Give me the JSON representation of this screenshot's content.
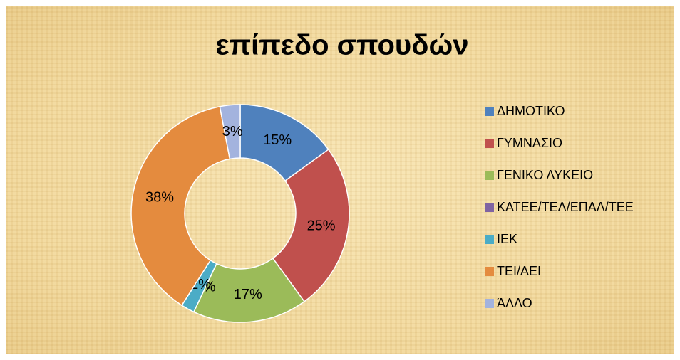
{
  "chart_data": {
    "type": "donut",
    "title": "επίπεδο σπουδών",
    "categories": [
      "ΔΗΜΟΤΙΚΟ",
      "ΓΥΜΝΑΣΙΟ",
      "ΓΕΝΙΚΟ ΛΥΚΕΙΟ",
      "ΚΑΤΕΕ/ΤΕΛ/ΕΠΑΛ/ΤΕΕ",
      "ΙΕΚ",
      "ΤΕΙ/ΑΕΙ",
      "ΆΛΛΟ"
    ],
    "values": [
      15,
      25,
      17,
      0,
      2,
      38,
      3
    ],
    "value_labels": [
      "15%",
      "25%",
      "17%",
      "0%",
      "2%",
      "38%",
      "3%"
    ],
    "colors": [
      "#4f81bd",
      "#c0504d",
      "#9bbb59",
      "#8064a2",
      "#4bacc6",
      "#e48b3e",
      "#a3b3de"
    ],
    "legend": "right"
  }
}
